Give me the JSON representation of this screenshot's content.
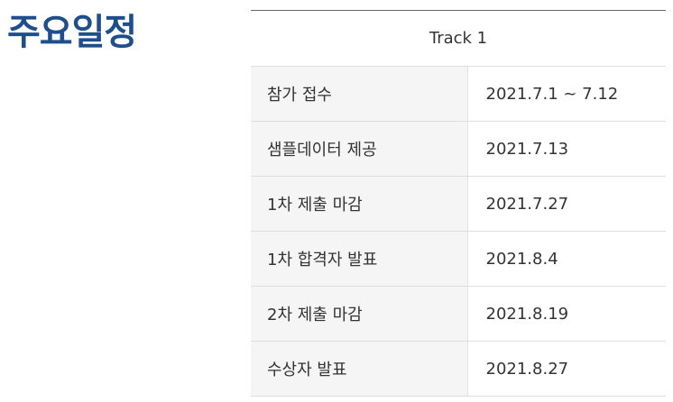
{
  "page": {
    "title": "주요일정"
  },
  "table": {
    "header": "Track 1",
    "rows": [
      {
        "label": "참가 접수",
        "date": "2021.7.1 ~ 7.12"
      },
      {
        "label": "샘플데이터 제공",
        "date": "2021.7.13"
      },
      {
        "label": "1차 제출 마감",
        "date": "2021.7.27"
      },
      {
        "label": "1차 합격자 발표",
        "date": "2021.8.4"
      },
      {
        "label": "2차 제출 마감",
        "date": "2021.8.19"
      },
      {
        "label": "수상자 발표",
        "date": "2021.8.27"
      }
    ]
  },
  "colors": {
    "title": "#1f4e8c",
    "label_background": "#f5f5f5",
    "border": "#dedede"
  }
}
